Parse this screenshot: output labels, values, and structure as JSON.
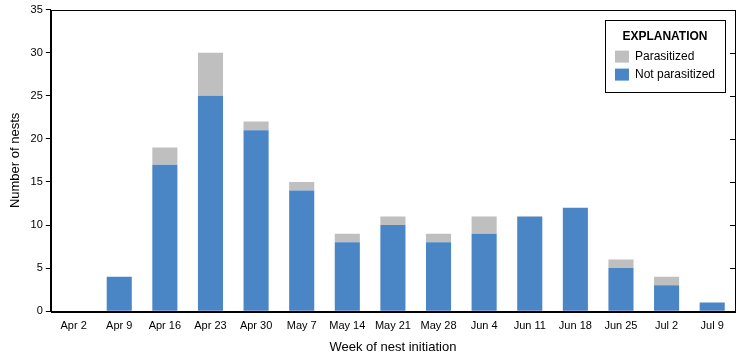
{
  "chart_data": {
    "type": "bar",
    "stacked": true,
    "grid": false,
    "legend": "upper right",
    "legend_title": "EXPLANATION",
    "x_label": "Week of nest initiation",
    "y_label": "Number of nests",
    "categories": [
      "Apr 2",
      "Apr 9",
      "Apr 16",
      "Apr 23",
      "Apr 30",
      "May 7",
      "May 14",
      "May 21",
      "May 28",
      "Jun 4",
      "Jun 11",
      "Jun 18",
      "Jun 25",
      "Jul 2",
      "Jul 9"
    ],
    "series": [
      {
        "name": "Not parasitized",
        "color": "#4a86c6",
        "values": [
          0,
          4,
          17,
          25,
          21,
          14,
          8,
          10,
          8,
          9,
          11,
          12,
          5,
          3,
          1
        ]
      },
      {
        "name": "Parasitized",
        "color": "#bfbfbf",
        "values": [
          0,
          0,
          2,
          5,
          1,
          1,
          1,
          1,
          1,
          2,
          0,
          0,
          1,
          1,
          0
        ]
      }
    ],
    "ylim": [
      0,
      35
    ],
    "yticks": [
      0,
      5,
      10,
      15,
      20,
      25,
      30,
      35
    ]
  }
}
